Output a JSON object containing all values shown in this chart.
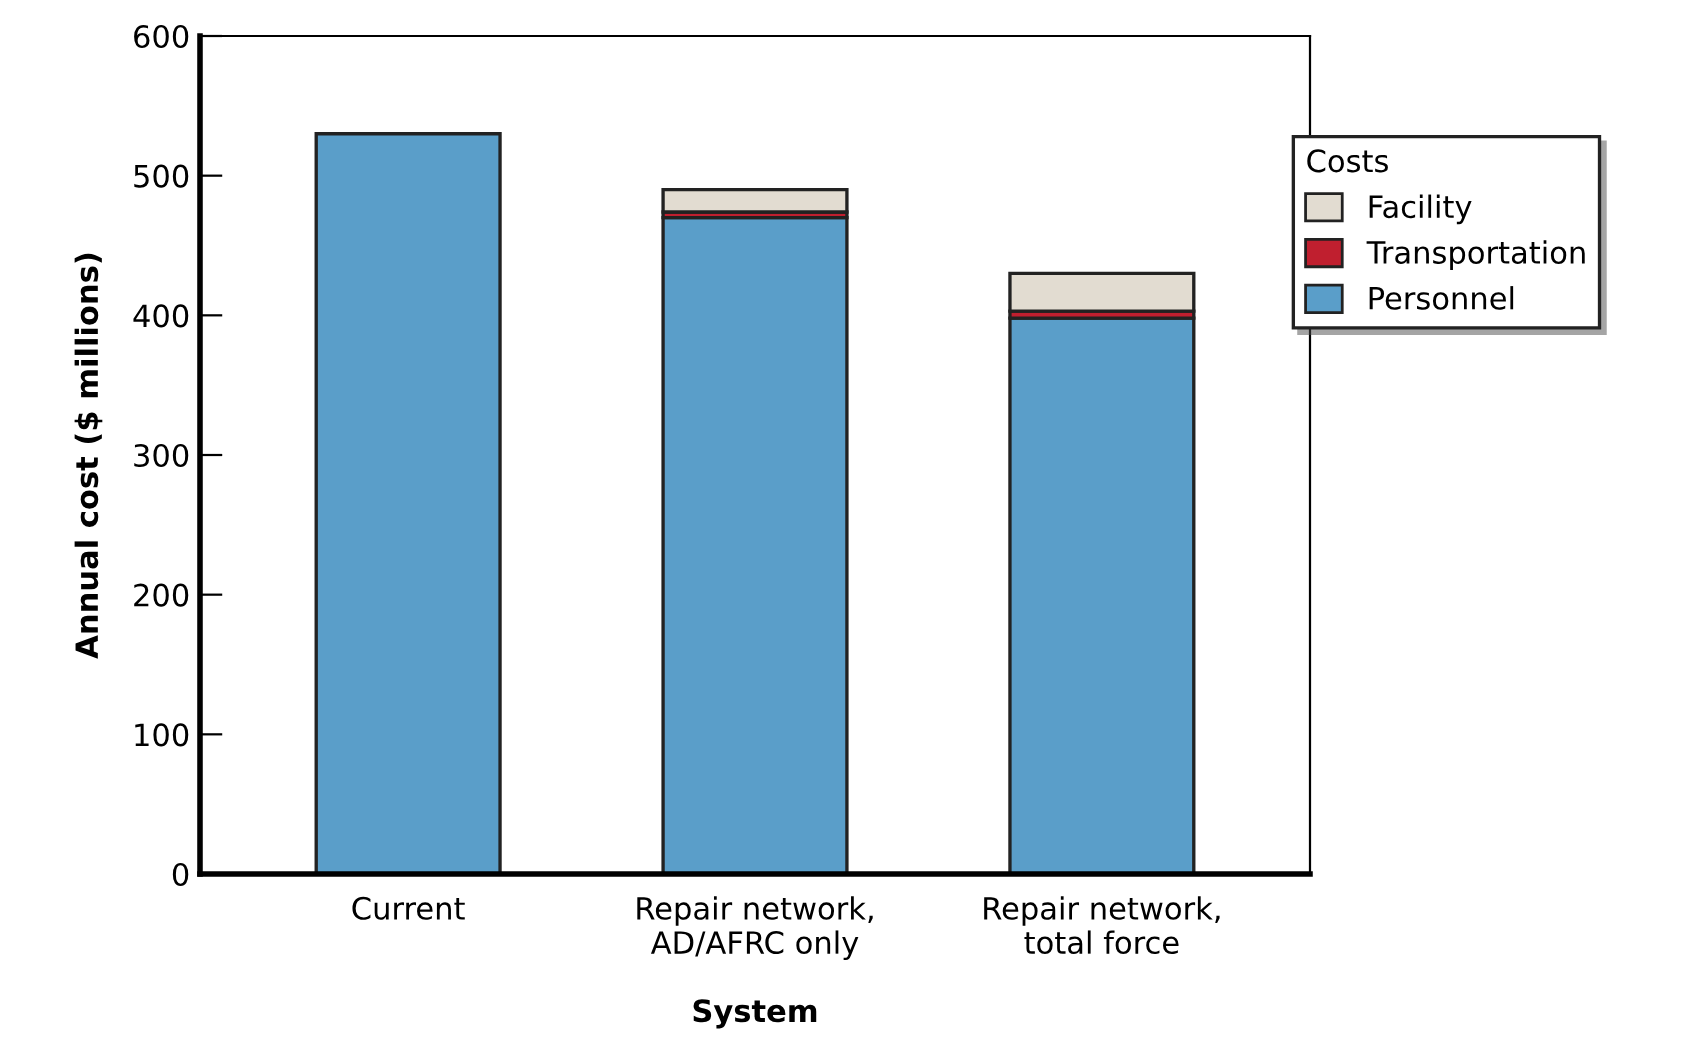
{
  "chart_data": {
    "type": "bar",
    "stacked": true,
    "xlabel": "System",
    "ylabel": "Annual cost ($ millions)",
    "categories": [
      "Current",
      "Repair network,\nAD/AFRC only",
      "Repair network,\ntotal force"
    ],
    "series": [
      {
        "name": "Personnel",
        "color": "#5a9ec9",
        "values": [
          530,
          470,
          398
        ]
      },
      {
        "name": "Transportation",
        "color": "#c01f2f",
        "values": [
          null,
          4,
          5
        ]
      },
      {
        "name": "Facility",
        "color": "#e2dcd1",
        "values": [
          null,
          16,
          27
        ]
      }
    ],
    "legend_title": "Costs",
    "legend": "top right",
    "ylim": [
      0,
      600
    ],
    "yticks": [
      0,
      100,
      200,
      300,
      400,
      500,
      600
    ],
    "grid": false
  }
}
